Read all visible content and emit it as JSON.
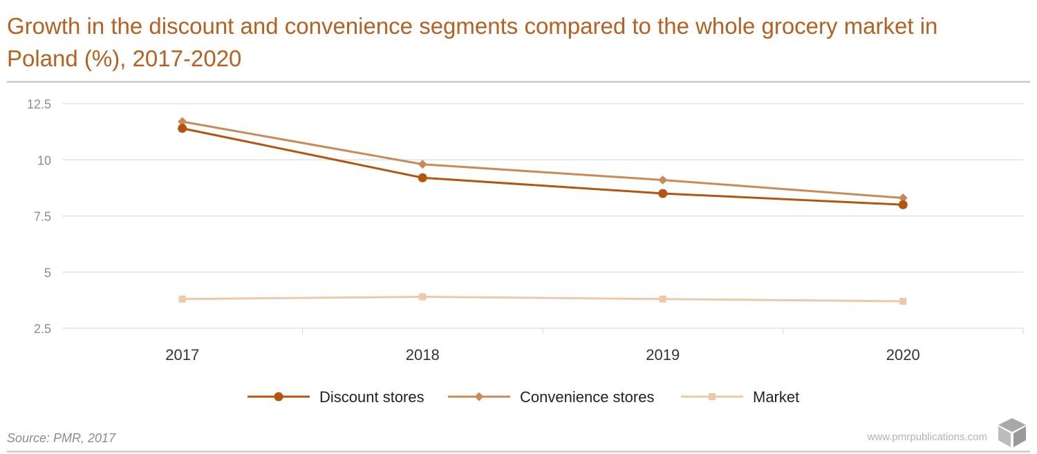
{
  "title": "Growth in the discount and convenience segments compared to the whole grocery market in Poland (%), 2017-2020",
  "footer": {
    "source": "Source: PMR, 2017",
    "website": "www.pmrpublications.com"
  },
  "chart_data": {
    "type": "line",
    "title": "Growth in the discount and convenience segments compared to the whole grocery market in Poland (%), 2017-2020",
    "categories": [
      "2017",
      "2018",
      "2019",
      "2020"
    ],
    "ylim": [
      2.5,
      12.5
    ],
    "yticks": [
      2.5,
      5,
      7.5,
      10,
      12.5
    ],
    "ytick_labels": [
      "2.5",
      "5",
      "7.5",
      "10",
      "12.5"
    ],
    "grid": true,
    "legend": "bottom-center",
    "series": [
      {
        "name": "Discount stores",
        "values": [
          11.4,
          9.2,
          8.5,
          8.0
        ],
        "color": "#b5540f",
        "marker": "circle"
      },
      {
        "name": "Convenience stores",
        "values": [
          11.7,
          9.8,
          9.1,
          8.3
        ],
        "color": "#c98a56",
        "marker": "diamond"
      },
      {
        "name": "Market",
        "values": [
          3.8,
          3.9,
          3.8,
          3.7
        ],
        "color": "#ebc9aa",
        "marker": "square"
      }
    ]
  }
}
